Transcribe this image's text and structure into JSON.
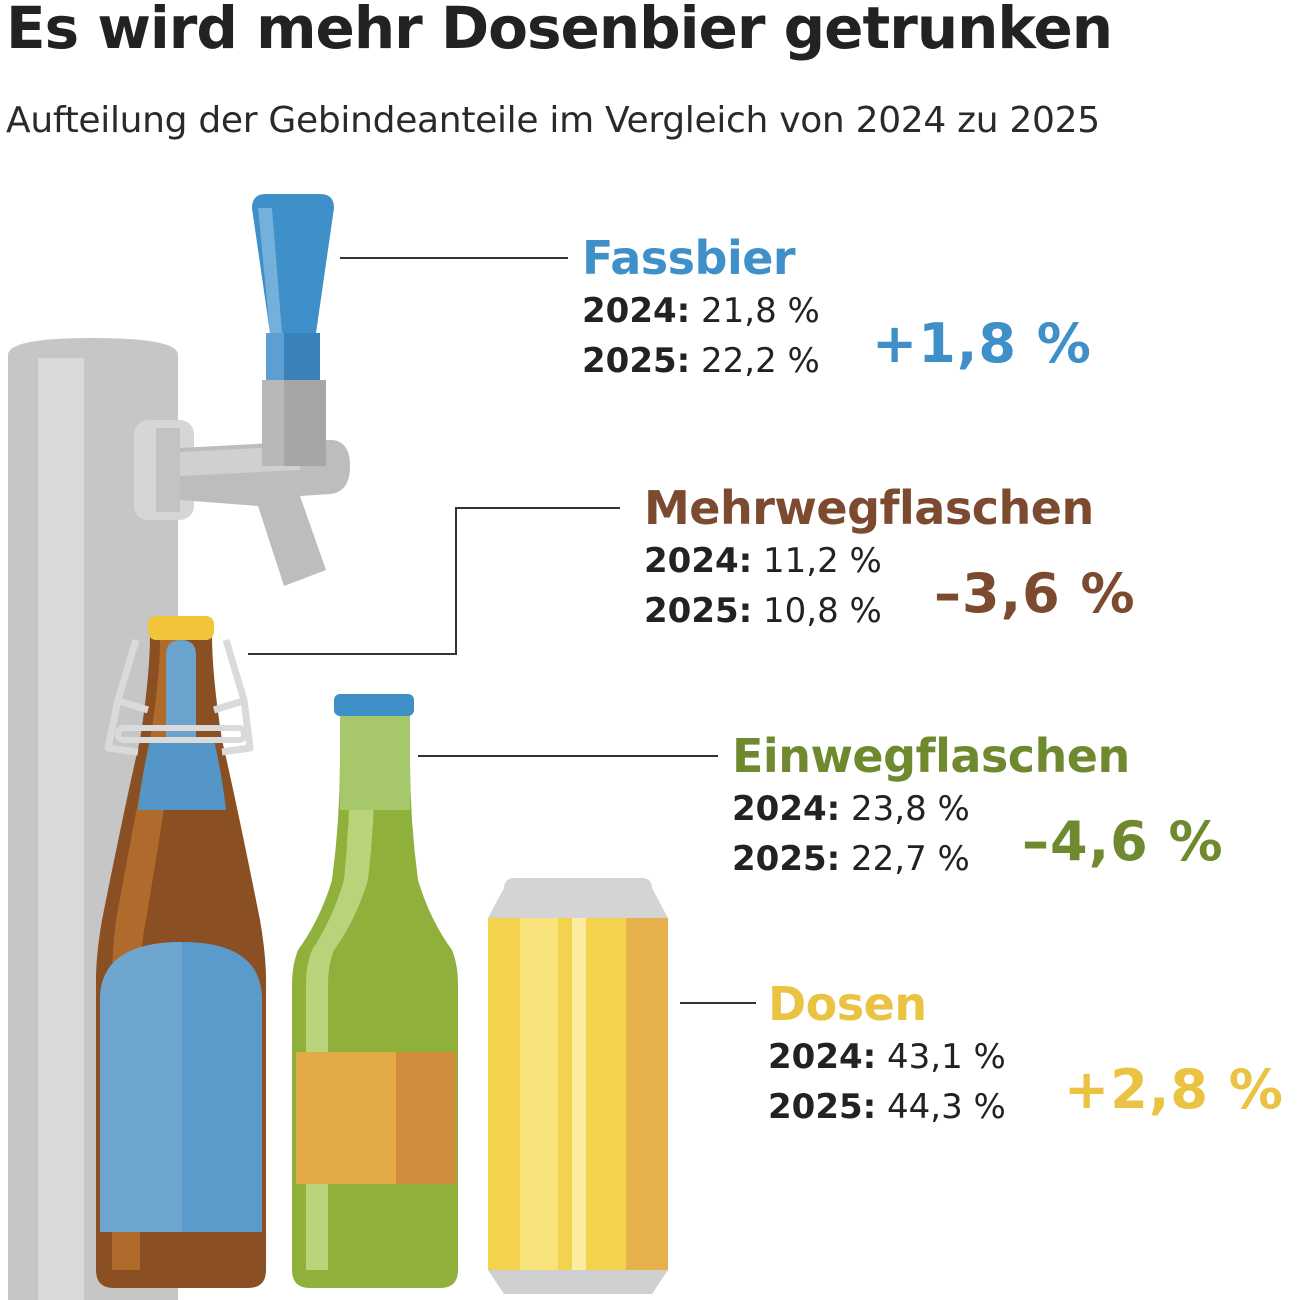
{
  "title": "Es wird mehr Dosenbier getrunken",
  "subtitle": "Aufteilung der Gebindeanteile im Vergleich von 2024 zu 2025",
  "categories": [
    {
      "name": "Fassbier",
      "color": "#3f8fc8",
      "y2024_label": "2024:",
      "v2024": "21,8 %",
      "y2025_label": "2025:",
      "v2025": "22,2 %",
      "change": "+1,8 %",
      "icon": "beer-tap-icon"
    },
    {
      "name": "Mehrwegflaschen",
      "color": "#7b4a2f",
      "y2024_label": "2024:",
      "v2024": "11,2 %",
      "y2025_label": "2025:",
      "v2025": "10,8 %",
      "change": "–3,6 %",
      "icon": "swing-top-bottle-icon"
    },
    {
      "name": "Einwegflaschen",
      "color": "#6f8a2e",
      "y2024_label": "2024:",
      "v2024": "23,8 %",
      "y2025_label": "2025:",
      "v2025": "22,7 %",
      "change": "–4,6 %",
      "icon": "green-bottle-icon"
    },
    {
      "name": "Dosen",
      "color": "#e9c341",
      "y2024_label": "2024:",
      "v2024": "43,1 %",
      "y2025_label": "2025:",
      "v2025": "44,3 %",
      "change": "+2,8 %",
      "icon": "beer-can-icon"
    }
  ]
}
